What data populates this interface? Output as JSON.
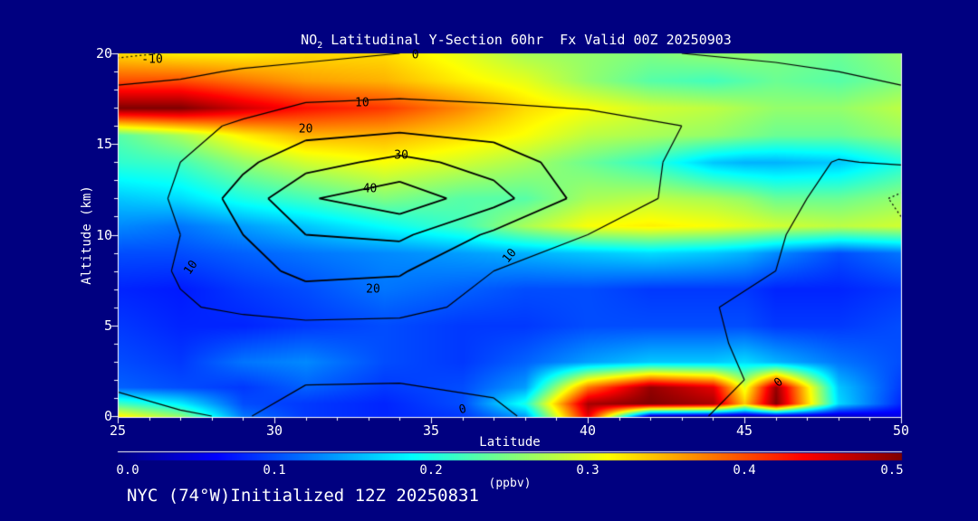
{
  "app": {
    "background": "#000080",
    "foreground": "#ffffff",
    "contour_line_color": "#000000"
  },
  "header": {
    "title_pre": "NO",
    "title_sub": "2",
    "title_post": " Latitudinal Y-Section 60hr  Fx Valid 00Z 20250903"
  },
  "footer": {
    "text": "NYC (74°W)Initialized 12Z 20250831"
  },
  "chart_data": {
    "type": "heatmap",
    "subtype": "filled-contour-cross-section-with-line-contours",
    "title": "NO2 Latitudinal Y-Section 60hr  Fx Valid 00Z 20250903",
    "xlabel": "Latitude",
    "ylabel": "Altitude (km)",
    "x_range": [
      25,
      50
    ],
    "y_range": [
      0,
      20
    ],
    "x_ticks": [
      "25",
      "30",
      "35",
      "40",
      "45",
      "50"
    ],
    "y_ticks": [
      "0",
      "5",
      "10",
      "15",
      "20"
    ],
    "x_minor_step": 1,
    "y_minor_step": 1,
    "grid": false,
    "colorbar": {
      "label": "(ppbv)",
      "ticks": [
        "0.0",
        "0.1",
        "0.2",
        "0.3",
        "0.4",
        "0.5"
      ],
      "min": 0.0,
      "max": 0.5,
      "stops": [
        [
          0,
          "#000083"
        ],
        [
          0.125,
          "#0000ff"
        ],
        [
          0.375,
          "#00ffff"
        ],
        [
          0.625,
          "#ffff00"
        ],
        [
          0.875,
          "#ff0000"
        ],
        [
          1,
          "#800000"
        ]
      ]
    },
    "fill_field": {
      "units": "ppbv",
      "lats": [
        25,
        27,
        29,
        31,
        33.5,
        36,
        38,
        40,
        42,
        44,
        45,
        46,
        48,
        50
      ],
      "alts": [
        0,
        0.7,
        1.6,
        3,
        5,
        7,
        9,
        10.5,
        12,
        14,
        15.5,
        17,
        18.5,
        20
      ],
      "values": [
        [
          0.32,
          0.26,
          0.12,
          0.09,
          0.08,
          0.09,
          0.14,
          0.45,
          0.02,
          0.01,
          0.01,
          0.02,
          0.03,
          0.05
        ],
        [
          0.22,
          0.18,
          0.1,
          0.09,
          0.08,
          0.1,
          0.2,
          0.48,
          0.5,
          0.48,
          0.34,
          0.5,
          0.17,
          0.08
        ],
        [
          0.11,
          0.1,
          0.09,
          0.11,
          0.09,
          0.1,
          0.14,
          0.38,
          0.49,
          0.45,
          0.3,
          0.49,
          0.16,
          0.09
        ],
        [
          0.1,
          0.09,
          0.12,
          0.13,
          0.1,
          0.09,
          0.11,
          0.14,
          0.16,
          0.16,
          0.17,
          0.15,
          0.12,
          0.1
        ],
        [
          0.09,
          0.08,
          0.08,
          0.09,
          0.1,
          0.09,
          0.09,
          0.1,
          0.1,
          0.1,
          0.1,
          0.09,
          0.09,
          0.1
        ],
        [
          0.08,
          0.075,
          0.09,
          0.1,
          0.12,
          0.11,
          0.1,
          0.1,
          0.09,
          0.09,
          0.09,
          0.08,
          0.08,
          0.09
        ],
        [
          0.1,
          0.1,
          0.11,
          0.12,
          0.13,
          0.14,
          0.15,
          0.16,
          0.17,
          0.16,
          0.15,
          0.13,
          0.1,
          0.12
        ],
        [
          0.13,
          0.12,
          0.14,
          0.16,
          0.19,
          0.22,
          0.27,
          0.31,
          0.32,
          0.31,
          0.3,
          0.29,
          0.28,
          0.29
        ],
        [
          0.16,
          0.17,
          0.2,
          0.22,
          0.25,
          0.23,
          0.23,
          0.27,
          0.28,
          0.27,
          0.26,
          0.24,
          0.24,
          0.26
        ],
        [
          0.21,
          0.22,
          0.26,
          0.29,
          0.31,
          0.29,
          0.27,
          0.24,
          0.21,
          0.16,
          0.15,
          0.15,
          0.16,
          0.2
        ],
        [
          0.23,
          0.27,
          0.32,
          0.35,
          0.35,
          0.33,
          0.31,
          0.28,
          0.27,
          0.26,
          0.25,
          0.24,
          0.24,
          0.26
        ],
        [
          0.5,
          0.5,
          0.46,
          0.43,
          0.41,
          0.37,
          0.33,
          0.31,
          0.29,
          0.28,
          0.27,
          0.26,
          0.26,
          0.28
        ],
        [
          0.4,
          0.4,
          0.38,
          0.36,
          0.35,
          0.32,
          0.3,
          0.26,
          0.23,
          0.22,
          0.23,
          0.24,
          0.23,
          0.25
        ],
        [
          0.33,
          0.32,
          0.32,
          0.33,
          0.33,
          0.3,
          0.27,
          0.26,
          0.25,
          0.26,
          0.26,
          0.25,
          0.24,
          0.26
        ]
      ]
    },
    "line_contours": {
      "levels": [
        -10,
        0,
        10,
        20,
        30,
        40
      ],
      "negative_style": "dotted",
      "lats": [
        25,
        27,
        29,
        31,
        34,
        37,
        40,
        43,
        46,
        48,
        50
      ],
      "alts": [
        0,
        2,
        4,
        6,
        8,
        10,
        12,
        14,
        16,
        17.5,
        19,
        20
      ],
      "values": [
        [
          -2,
          -0.5,
          0.5,
          -3,
          -3,
          -0.5,
          1.5,
          1,
          -2.5,
          -4,
          -6
        ],
        [
          1,
          2.5,
          2,
          0.5,
          0.3,
          0.5,
          2,
          2,
          -1,
          -5,
          -7
        ],
        [
          5,
          4,
          2,
          1,
          0.5,
          1,
          2.5,
          2,
          -2,
          -7,
          -9
        ],
        [
          6,
          9,
          12,
          15,
          14,
          6,
          4,
          2,
          -3,
          -8,
          -10
        ],
        [
          4,
          11,
          17,
          22,
          21,
          10,
          6,
          4,
          0,
          -6,
          -9
        ],
        [
          3,
          10,
          20,
          30,
          32,
          18,
          10,
          6,
          1,
          -5,
          -8
        ],
        [
          2,
          12,
          24,
          39,
          46,
          34,
          16,
          8,
          2,
          -2,
          -12
        ],
        [
          3,
          10,
          18,
          26,
          33,
          26,
          14,
          9,
          4,
          -0.5,
          1
        ],
        [
          6,
          8,
          11,
          16,
          17,
          15,
          13,
          10,
          8,
          6,
          4
        ],
        [
          4,
          5,
          7,
          9,
          10,
          9,
          8,
          7,
          5,
          3,
          1
        ],
        [
          -4,
          -2,
          1,
          2,
          3,
          3,
          2,
          2,
          1,
          0,
          -1
        ],
        [
          -12,
          -9,
          -5,
          -2,
          0,
          1,
          0.5,
          0,
          -1,
          -2,
          -3
        ]
      ],
      "labels": [
        {
          "text": "-10",
          "lat": 26.1,
          "alt": 19.65,
          "rot": 0
        },
        {
          "text": "0",
          "lat": 34.5,
          "alt": 19.9,
          "rot": 0
        },
        {
          "text": "10",
          "lat": 32.8,
          "alt": 17.25,
          "rot": 0
        },
        {
          "text": "20",
          "lat": 31.0,
          "alt": 15.8,
          "rot": 0
        },
        {
          "text": "30",
          "lat": 34.05,
          "alt": 14.35,
          "rot": 0
        },
        {
          "text": "40",
          "lat": 33.05,
          "alt": 12.5,
          "rot": 0
        },
        {
          "text": "10",
          "lat": 27.35,
          "alt": 8.2,
          "rot": -55
        },
        {
          "text": "10",
          "lat": 37.5,
          "alt": 8.85,
          "rot": -50
        },
        {
          "text": "20",
          "lat": 33.15,
          "alt": 7.0,
          "rot": 0
        },
        {
          "text": "0",
          "lat": 36.0,
          "alt": 0.35,
          "rot": -15
        },
        {
          "text": "0",
          "lat": 46.1,
          "alt": 1.85,
          "rot": -40
        }
      ]
    }
  }
}
